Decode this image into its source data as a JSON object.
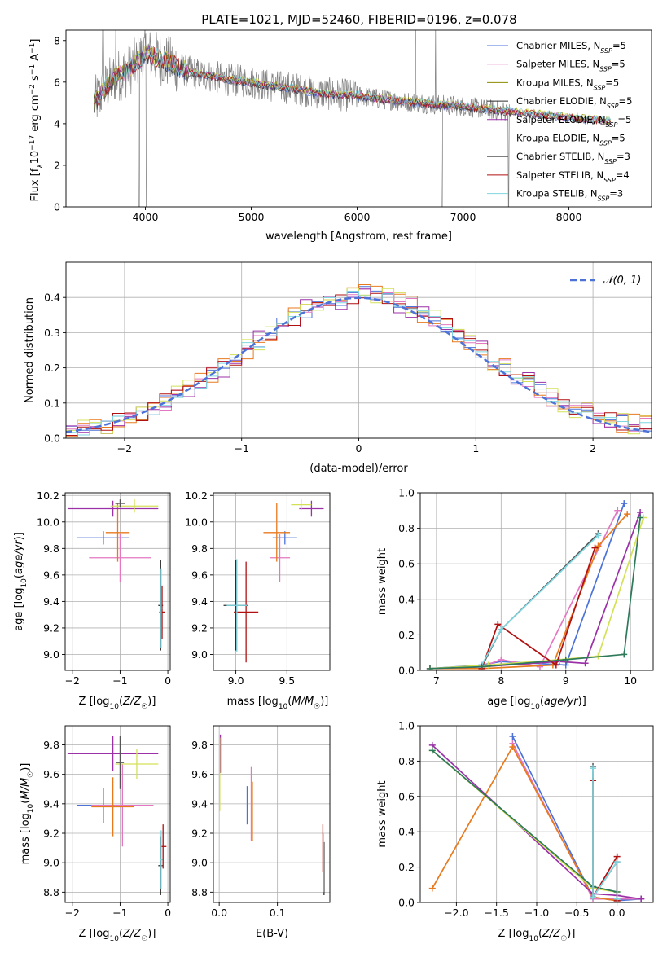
{
  "chart_data": [
    {
      "id": "spectrum",
      "type": "line",
      "title": "PLATE=1021, MJD=52460, FIBERID=0196, z=0.078",
      "xlabel": "wavelength [Angstrom, rest frame]",
      "ylabel": "Flux [f_λ 10^-17 erg cm^-2 s^-1 A^-1]",
      "xlim": [
        3250,
        8780
      ],
      "ylim": [
        0,
        8.5
      ],
      "xticks": [
        4000,
        5000,
        6000,
        7000,
        8000
      ],
      "yticks": [
        0,
        2,
        4,
        6,
        8
      ],
      "legend_position": "upper right",
      "legend": [
        {
          "label": "Chabrier MILES, N_SSP=5",
          "color": "#4c72d8"
        },
        {
          "label": "Salpeter MILES, N_SSP=5",
          "color": "#e377c2"
        },
        {
          "label": "Kroupa MILES, N_SSP=5",
          "color": "#8c8c00"
        },
        {
          "label": "Chabrier ELODIE, N_SSP=5",
          "color": "#2d2d2d"
        },
        {
          "label": "Salpeter ELODIE, N_SSP=5",
          "color": "#9b30a8"
        },
        {
          "label": "Kroupa ELODIE, N_SSP=5",
          "color": "#d4e157"
        },
        {
          "label": "Chabrier STELIB, N_SSP=3",
          "color": "#555555"
        },
        {
          "label": "Salpeter STELIB, N_SSP=4",
          "color": "#b01010"
        },
        {
          "label": "Kroupa STELIB, N_SSP=3",
          "color": "#7fd6e0"
        }
      ],
      "data_series": {
        "wavelength": [
          3520,
          3700,
          3850,
          4000,
          4200,
          4400,
          4600,
          4800,
          5000,
          5200,
          5400,
          5600,
          5800,
          6000,
          6200,
          6400,
          6600,
          6800,
          7000,
          7200,
          7400,
          7600,
          7800,
          8000,
          8200,
          8400
        ],
        "flux": [
          5.0,
          6.2,
          6.6,
          7.4,
          7.0,
          6.5,
          6.3,
          6.1,
          6.0,
          5.8,
          5.7,
          5.5,
          5.4,
          5.35,
          5.2,
          5.1,
          5.0,
          4.9,
          4.85,
          4.7,
          4.6,
          4.5,
          4.4,
          4.3,
          4.2,
          4.1
        ]
      }
    },
    {
      "id": "residuals",
      "type": "histogram",
      "xlabel": "(data-model)/error",
      "ylabel": "Normed distribution",
      "xlim": [
        -2.5,
        2.5
      ],
      "ylim": [
        0,
        0.5
      ],
      "xticks": [
        -2,
        -1,
        0,
        1,
        2
      ],
      "yticks": [
        0.0,
        0.1,
        0.2,
        0.3,
        0.4
      ],
      "grid": true,
      "legend": [
        {
          "label": "𝒩(0, 1)",
          "color": "#4c72d8",
          "style": "dashed"
        }
      ],
      "bin_width": 0.1,
      "series": [
        {
          "color": "#4c72d8",
          "jitter": 0.02
        },
        {
          "color": "#e377c2",
          "jitter": 0.025
        },
        {
          "color": "#e87a1e",
          "jitter": 0.03
        },
        {
          "color": "#9b30a8",
          "jitter": 0.035
        },
        {
          "color": "#d4e157",
          "jitter": 0.03
        },
        {
          "color": "#b01010",
          "jitter": 0.025
        },
        {
          "color": "#7fd6e0",
          "jitter": 0.02
        }
      ]
    },
    {
      "id": "age_vs_Z",
      "type": "errorbar",
      "xlabel": "Z [log10(Z/Z☉)]",
      "ylabel": "age  [log10(age/yr)]",
      "xlim": [
        -2.15,
        0.05
      ],
      "ylim": [
        8.88,
        10.22
      ],
      "xticks": [
        -2,
        -1,
        0
      ],
      "yticks": [
        9.0,
        9.2,
        9.4,
        9.6,
        9.8,
        10.0,
        10.2
      ],
      "grid": true,
      "points": [
        {
          "x": -1.35,
          "xerr": 0.55,
          "y": 9.88,
          "yerr": 0.05,
          "color": "#4c72d8"
        },
        {
          "x": -1.0,
          "xerr": 0.65,
          "y": 9.73,
          "yerr": 0.18,
          "color": "#e377c2"
        },
        {
          "x": -1.05,
          "xerr": 0.25,
          "y": 9.92,
          "yerr": 0.22,
          "color": "#e87a1e"
        },
        {
          "x": -1.15,
          "xerr": 0.95,
          "y": 10.1,
          "yerr": 0.06,
          "color": "#9b30a8"
        },
        {
          "x": -0.7,
          "xerr": 0.5,
          "y": 10.12,
          "yerr": 0.05,
          "color": "#d4e157"
        },
        {
          "x": -0.15,
          "xerr": 0.05,
          "y": 9.37,
          "yerr": 0.34,
          "color": "#2d2d2d"
        },
        {
          "x": -0.12,
          "xerr": 0.06,
          "y": 9.32,
          "yerr": 0.2,
          "color": "#b01010"
        },
        {
          "x": -0.14,
          "xerr": 0.04,
          "y": 9.35,
          "yerr": 0.3,
          "color": "#7fd6e0"
        },
        {
          "x": -1.0,
          "xerr": 0.1,
          "y": 10.14,
          "yerr": 0.03,
          "color": "#555555"
        }
      ]
    },
    {
      "id": "age_vs_mass",
      "type": "errorbar",
      "xlabel": "mass [log10(M/M☉)]",
      "xlim": [
        8.78,
        9.92
      ],
      "ylim": [
        8.88,
        10.22
      ],
      "xticks": [
        9.0,
        9.5
      ],
      "yticks": [
        9.0,
        9.2,
        9.4,
        9.6,
        9.8,
        10.0,
        10.2
      ],
      "grid": true,
      "points": [
        {
          "x": 9.48,
          "xerr": 0.12,
          "y": 9.88,
          "yerr": 0.05,
          "color": "#4c72d8"
        },
        {
          "x": 9.43,
          "xerr": 0.1,
          "y": 9.73,
          "yerr": 0.18,
          "color": "#e377c2"
        },
        {
          "x": 9.4,
          "xerr": 0.13,
          "y": 9.92,
          "yerr": 0.22,
          "color": "#e87a1e"
        },
        {
          "x": 9.74,
          "xerr": 0.12,
          "y": 10.1,
          "yerr": 0.06,
          "color": "#9b30a8"
        },
        {
          "x": 9.64,
          "xerr": 0.1,
          "y": 10.13,
          "yerr": 0.04,
          "color": "#d4e157"
        },
        {
          "x": 9.0,
          "xerr": 0.12,
          "y": 9.37,
          "yerr": 0.34,
          "color": "#2d2d2d"
        },
        {
          "x": 9.1,
          "xerr": 0.12,
          "y": 9.32,
          "yerr": 0.38,
          "color": "#b01010"
        },
        {
          "x": 9.01,
          "xerr": 0.1,
          "y": 9.37,
          "yerr": 0.35,
          "color": "#7fd6e0"
        }
      ]
    },
    {
      "id": "mass_weight_vs_age",
      "type": "line",
      "xlabel": "age  [log10(age/yr)]",
      "ylabel": "mass weight",
      "xlim": [
        6.75,
        10.35
      ],
      "ylim": [
        0,
        1.0
      ],
      "xticks": [
        7,
        8,
        9,
        10
      ],
      "yticks": [
        0.0,
        0.2,
        0.4,
        0.6,
        0.8,
        1.0
      ],
      "grid": true,
      "series": [
        {
          "color": "#4c72d8",
          "x": [
            6.9,
            7.7,
            8.0,
            9.0,
            9.9
          ],
          "y": [
            0.01,
            0.03,
            0.05,
            0.03,
            0.94
          ]
        },
        {
          "color": "#e377c2",
          "x": [
            6.9,
            7.7,
            8.0,
            8.6,
            9.8
          ],
          "y": [
            0.01,
            0.02,
            0.06,
            0.02,
            0.9
          ]
        },
        {
          "color": "#e87a1e",
          "x": [
            6.9,
            7.7,
            8.8,
            9.5,
            9.95
          ],
          "y": [
            0.01,
            0.01,
            0.03,
            0.7,
            0.88
          ]
        },
        {
          "color": "#9b30a8",
          "x": [
            6.9,
            7.7,
            8.9,
            9.3,
            10.15
          ],
          "y": [
            0.01,
            0.02,
            0.05,
            0.04,
            0.89
          ]
        },
        {
          "color": "#d4e157",
          "x": [
            6.9,
            7.8,
            8.9,
            9.5,
            10.2
          ],
          "y": [
            0.01,
            0.03,
            0.06,
            0.08,
            0.86
          ]
        },
        {
          "color": "#555555",
          "x": [
            7.7,
            8.0,
            9.5
          ],
          "y": [
            0.02,
            0.23,
            0.77
          ]
        },
        {
          "color": "#b01010",
          "x": [
            7.7,
            7.95,
            8.85,
            9.45
          ],
          "y": [
            0.01,
            0.26,
            0.03,
            0.69
          ]
        },
        {
          "color": "#7fd6e0",
          "x": [
            7.7,
            8.0,
            9.5
          ],
          "y": [
            0.03,
            0.23,
            0.76
          ]
        },
        {
          "color": "#2d7a5a",
          "x": [
            6.9,
            7.7,
            9.0,
            9.9,
            10.15
          ],
          "y": [
            0.01,
            0.02,
            0.06,
            0.09,
            0.86
          ]
        }
      ]
    },
    {
      "id": "mass_vs_Z",
      "type": "errorbar",
      "xlabel": "Z [log10(Z/Z☉)]",
      "ylabel": "mass [log10(M/M☉)]",
      "xlim": [
        -2.15,
        0.05
      ],
      "ylim": [
        8.73,
        9.93
      ],
      "xticks": [
        -2,
        -1,
        0
      ],
      "yticks": [
        8.8,
        9.0,
        9.2,
        9.4,
        9.6,
        9.8
      ],
      "grid": true,
      "points": [
        {
          "x": -1.35,
          "xerr": 0.55,
          "y": 9.39,
          "yerr": 0.12,
          "color": "#4c72d8"
        },
        {
          "x": -0.95,
          "xerr": 0.65,
          "y": 9.39,
          "yerr": 0.28,
          "color": "#e377c2"
        },
        {
          "x": -1.15,
          "xerr": 0.45,
          "y": 9.38,
          "yerr": 0.2,
          "color": "#e87a1e"
        },
        {
          "x": -1.15,
          "xerr": 0.95,
          "y": 9.74,
          "yerr": 0.12,
          "color": "#9b30a8"
        },
        {
          "x": -0.65,
          "xerr": 0.45,
          "y": 9.67,
          "yerr": 0.1,
          "color": "#d4e157"
        },
        {
          "x": -0.15,
          "xerr": 0.05,
          "y": 8.98,
          "yerr": 0.2,
          "color": "#2d2d2d"
        },
        {
          "x": -0.1,
          "xerr": 0.07,
          "y": 9.11,
          "yerr": 0.15,
          "color": "#b01010"
        },
        {
          "x": -0.14,
          "xerr": 0.03,
          "y": 9.02,
          "yerr": 0.2,
          "color": "#7fd6e0"
        },
        {
          "x": -1.0,
          "xerr": 0.08,
          "y": 9.68,
          "yerr": 0.18,
          "color": "#555555"
        }
      ]
    },
    {
      "id": "mass_vs_ebv",
      "type": "errorbar",
      "xlabel": "E(B-V)",
      "xlim": [
        -0.01,
        0.19
      ],
      "ylim": [
        8.73,
        9.93
      ],
      "xticks": [
        0.0,
        0.1
      ],
      "yticks": [
        8.8,
        9.0,
        9.2,
        9.4,
        9.6,
        9.8
      ],
      "grid": true,
      "points": [
        {
          "x": 0.048,
          "y": 9.39,
          "yerr": 0.13,
          "color": "#4c72d8"
        },
        {
          "x": 0.055,
          "y": 9.4,
          "yerr": 0.25,
          "color": "#e377c2"
        },
        {
          "x": 0.057,
          "y": 9.35,
          "yerr": 0.2,
          "color": "#e87a1e"
        },
        {
          "x": 0.002,
          "y": 9.74,
          "yerr": 0.13,
          "color": "#9b30a8"
        },
        {
          "x": 0.001,
          "y": 9.6,
          "yerr": 0.25,
          "color": "#d4e157"
        },
        {
          "x": 0.18,
          "y": 8.96,
          "yerr": 0.18,
          "color": "#2d2d2d"
        },
        {
          "x": 0.178,
          "y": 9.1,
          "yerr": 0.16,
          "color": "#b01010"
        },
        {
          "x": 0.179,
          "y": 9.0,
          "yerr": 0.2,
          "color": "#7fd6e0"
        }
      ]
    },
    {
      "id": "mass_weight_vs_Z",
      "type": "line",
      "xlabel": "Z [log10(Z/Z☉)]",
      "ylabel": "mass weight",
      "xlim": [
        -2.45,
        0.45
      ],
      "ylim": [
        0,
        1.0
      ],
      "xticks": [
        -2.0,
        -1.5,
        -1.0,
        -0.5,
        0.0
      ],
      "yticks": [
        0.0,
        0.2,
        0.4,
        0.6,
        0.8,
        1.0
      ],
      "grid": true,
      "series": [
        {
          "color": "#4c72d8",
          "x": [
            -1.3,
            -0.3,
            0.0,
            0.3
          ],
          "y": [
            0.94,
            0.03,
            0.01,
            0.02
          ]
        },
        {
          "color": "#e377c2",
          "x": [
            -1.3,
            -0.3,
            0.0,
            0.3
          ],
          "y": [
            0.9,
            0.02,
            0.02,
            0.02
          ]
        },
        {
          "color": "#e87a1e",
          "x": [
            -2.3,
            -1.3,
            -0.3,
            0.0
          ],
          "y": [
            0.08,
            0.88,
            0.03,
            0.01
          ]
        },
        {
          "color": "#9b30a8",
          "x": [
            -2.3,
            -0.3,
            0.0,
            0.3
          ],
          "y": [
            0.89,
            0.05,
            0.04,
            0.02
          ]
        },
        {
          "color": "#d4e157",
          "x": [
            -2.3,
            -0.3,
            0.0
          ],
          "y": [
            0.86,
            0.08,
            0.06
          ]
        },
        {
          "color": "#2d7a5a",
          "x": [
            -2.3,
            -0.3,
            0.0
          ],
          "y": [
            0.86,
            0.09,
            0.06
          ]
        },
        {
          "color": "#555555",
          "x": [
            -0.3,
            -0.3,
            0.0,
            0.0
          ],
          "y": [
            0.77,
            0.03,
            0.23,
            0.02
          ]
        },
        {
          "color": "#b01010",
          "x": [
            -0.3,
            -0.3,
            0.0,
            0.0
          ],
          "y": [
            0.69,
            0.03,
            0.26,
            0.01
          ]
        },
        {
          "color": "#7fd6e0",
          "x": [
            -0.3,
            -0.3,
            0.0,
            0.0
          ],
          "y": [
            0.76,
            0.03,
            0.23,
            0.02
          ]
        }
      ]
    }
  ]
}
